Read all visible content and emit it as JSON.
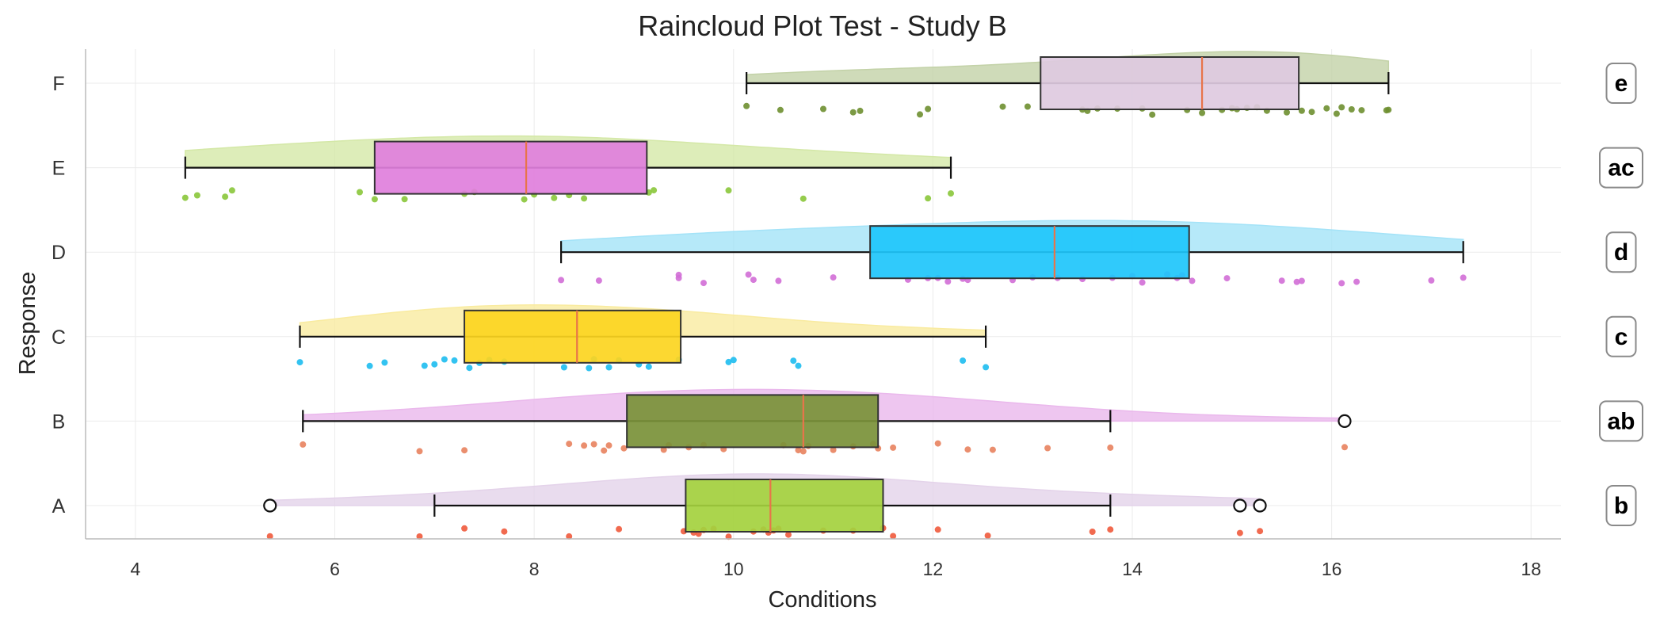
{
  "chart_data": {
    "type": "raincloud",
    "title": "Raincloud Plot Test - Study B",
    "xlabel": "Conditions",
    "ylabel": "Response",
    "xlim": [
      3.5,
      18.3
    ],
    "xticks": [
      4,
      6,
      8,
      10,
      12,
      14,
      16,
      18
    ],
    "grid": true,
    "categories": [
      "A",
      "B",
      "C",
      "D",
      "E",
      "F"
    ],
    "groups": [
      {
        "name": "A",
        "letter": "b",
        "box_color": "#a4d13e",
        "cloud_color": "#e4d3ea",
        "point_color": "#f05a3c",
        "whisker_low": 7.0,
        "q1": 9.52,
        "median": 10.37,
        "q3": 11.5,
        "whisker_high": 13.78,
        "outliers": [
          5.35,
          15.08,
          15.28
        ],
        "points": [
          5.35,
          6.85,
          7.3,
          7.7,
          8.35,
          8.85,
          9.5,
          9.6,
          9.65,
          9.7,
          9.8,
          9.95,
          10.2,
          10.3,
          10.35,
          10.4,
          10.45,
          10.55,
          10.9,
          11.2,
          11.5,
          11.6,
          12.05,
          12.55,
          13.6,
          13.78,
          15.08,
          15.28
        ]
      },
      {
        "name": "B",
        "letter": "ab",
        "box_color": "#7a9138",
        "cloud_color": "#eab8ec",
        "point_color": "#e8825e",
        "whisker_low": 5.68,
        "q1": 8.93,
        "median": 10.7,
        "q3": 11.45,
        "whisker_high": 13.78,
        "outliers": [
          16.13
        ],
        "points": [
          5.68,
          6.85,
          7.3,
          8.35,
          8.5,
          8.6,
          8.7,
          8.75,
          8.9,
          9.3,
          9.35,
          9.55,
          9.7,
          9.9,
          10.5,
          10.65,
          10.7,
          10.75,
          11.0,
          11.2,
          11.4,
          11.45,
          11.6,
          12.05,
          12.35,
          12.6,
          13.15,
          13.78,
          16.13
        ]
      },
      {
        "name": "C",
        "letter": "c",
        "box_color": "#fcd520",
        "cloud_color": "#f9eba0",
        "point_color": "#1dbcf0",
        "whisker_low": 5.65,
        "q1": 7.3,
        "median": 8.43,
        "q3": 9.47,
        "whisker_high": 12.53,
        "outliers": [],
        "points": [
          5.65,
          6.35,
          6.5,
          6.9,
          7.0,
          7.1,
          7.2,
          7.35,
          7.45,
          7.55,
          7.7,
          8.3,
          8.55,
          8.6,
          8.75,
          8.85,
          9.05,
          9.15,
          9.45,
          9.95,
          10.0,
          10.6,
          10.65,
          12.3,
          12.53
        ]
      },
      {
        "name": "D",
        "letter": "d",
        "box_color": "#1ec5fb",
        "cloud_color": "#a4e3f8",
        "point_color": "#d26ed6",
        "whisker_low": 8.27,
        "q1": 11.37,
        "median": 13.22,
        "q3": 14.57,
        "whisker_high": 17.32,
        "outliers": [],
        "points": [
          8.27,
          8.65,
          9.45,
          9.45,
          9.7,
          10.15,
          10.2,
          10.45,
          11.0,
          11.75,
          11.95,
          12.05,
          12.15,
          12.3,
          12.35,
          12.8,
          13.0,
          13.25,
          13.5,
          13.8,
          14.0,
          14.1,
          14.35,
          14.45,
          14.5,
          14.6,
          14.95,
          15.5,
          15.65,
          15.7,
          16.1,
          16.25,
          17.0,
          17.32
        ]
      },
      {
        "name": "E",
        "letter": "ac",
        "box_color": "#e07fdc",
        "cloud_color": "#d4e8a7",
        "point_color": "#8ac63a",
        "whisker_low": 4.5,
        "q1": 6.4,
        "median": 7.92,
        "q3": 9.13,
        "whisker_high": 12.18,
        "outliers": [],
        "points": [
          4.5,
          4.62,
          4.9,
          4.97,
          6.25,
          6.4,
          6.7,
          7.3,
          7.4,
          7.9,
          8.0,
          8.2,
          8.35,
          8.5,
          9.15,
          9.2,
          9.95,
          10.7,
          11.95,
          12.18
        ]
      },
      {
        "name": "F",
        "letter": "e",
        "box_color": "#decadf",
        "cloud_color": "#c3d2a8",
        "point_color": "#6e8f30",
        "whisker_low": 10.13,
        "q1": 13.08,
        "median": 14.7,
        "q3": 15.67,
        "whisker_high": 16.57,
        "outliers": [],
        "points": [
          10.13,
          10.47,
          10.9,
          11.2,
          11.27,
          11.87,
          11.95,
          12.7,
          12.95,
          13.5,
          13.55,
          13.65,
          13.85,
          14.1,
          14.2,
          14.55,
          14.7,
          14.9,
          15.0,
          15.05,
          15.15,
          15.25,
          15.35,
          15.55,
          15.7,
          15.8,
          15.95,
          16.05,
          16.1,
          16.2,
          16.3,
          16.55,
          16.57
        ]
      }
    ]
  }
}
